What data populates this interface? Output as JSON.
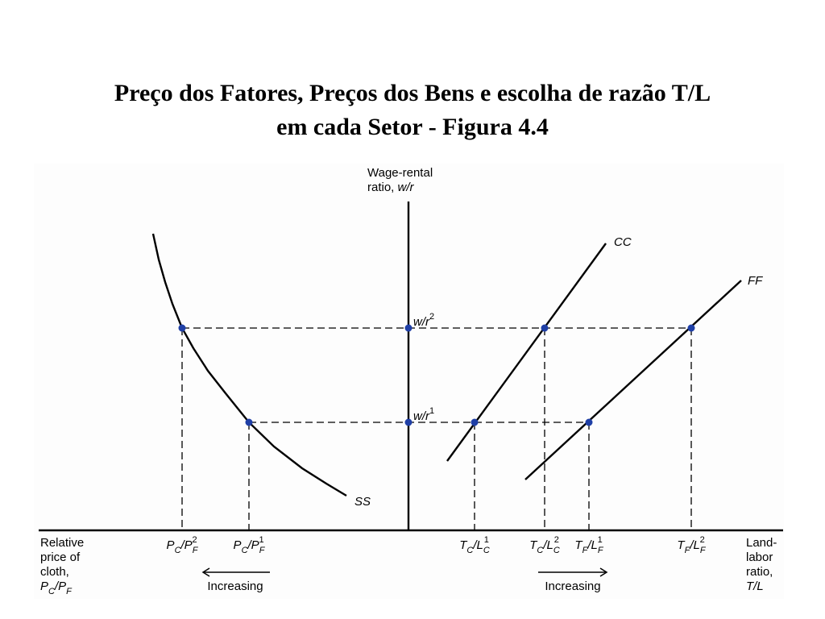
{
  "title": [
    "Preço dos Fatores, Preços dos Bens e escolha de razão T/L",
    "em cada Setor - Figura 4.4"
  ],
  "axis_labels": {
    "vertical": [
      [
        {
          "s": "n",
          "text": "Wage-rental"
        }
      ],
      [
        {
          "s": "n",
          "text": "ratio, "
        },
        {
          "s": "i",
          "text": "w/r"
        }
      ]
    ],
    "left": [
      [
        {
          "s": "n",
          "text": "Relative"
        }
      ],
      [
        {
          "s": "n",
          "text": "price of"
        }
      ],
      [
        {
          "s": "n",
          "text": "cloth,"
        }
      ],
      [
        {
          "s": "i",
          "text": "P"
        },
        {
          "s": "sub",
          "text": "C"
        },
        {
          "s": "i",
          "text": "/P"
        },
        {
          "s": "sub",
          "text": "F"
        }
      ]
    ],
    "right": [
      [
        {
          "s": "n",
          "text": "Land-"
        }
      ],
      [
        {
          "s": "n",
          "text": "labor"
        }
      ],
      [
        {
          "s": "n",
          "text": "ratio,"
        }
      ],
      [
        {
          "s": "i",
          "text": "T/L"
        }
      ]
    ]
  },
  "curves": {
    "cc": "CC",
    "ff": "FF",
    "ss": "SS"
  },
  "wage_levels": [
    [
      {
        "s": "i",
        "text": "w/r"
      },
      {
        "s": "sup",
        "text": "2"
      }
    ],
    [
      {
        "s": "i",
        "text": "w/r"
      },
      {
        "s": "sup",
        "text": "1"
      }
    ]
  ],
  "ticks": [
    [
      {
        "s": "i",
        "text": "P"
      },
      {
        "s": "sub",
        "text": "C"
      },
      {
        "s": "i",
        "text": "/P"
      },
      {
        "s": "subsup",
        "text": "F",
        "sup": "2"
      }
    ],
    [
      {
        "s": "i",
        "text": "P"
      },
      {
        "s": "sub",
        "text": "C"
      },
      {
        "s": "i",
        "text": "/P"
      },
      {
        "s": "subsup",
        "text": "F",
        "sup": "1"
      }
    ],
    [
      {
        "s": "i",
        "text": "T"
      },
      {
        "s": "sub",
        "text": "C"
      },
      {
        "s": "i",
        "text": "/L"
      },
      {
        "s": "subsup",
        "text": "C",
        "sup": "1"
      }
    ],
    [
      {
        "s": "i",
        "text": "T"
      },
      {
        "s": "sub",
        "text": "C"
      },
      {
        "s": "i",
        "text": "/L"
      },
      {
        "s": "subsup",
        "text": "C",
        "sup": "2"
      }
    ],
    [
      {
        "s": "i",
        "text": "T"
      },
      {
        "s": "sub",
        "text": "F"
      },
      {
        "s": "i",
        "text": "/L"
      },
      {
        "s": "subsup",
        "text": "F",
        "sup": "1"
      }
    ],
    [
      {
        "s": "i",
        "text": "T"
      },
      {
        "s": "sub",
        "text": "F"
      },
      {
        "s": "i",
        "text": "/L"
      },
      {
        "s": "subsup",
        "text": "F",
        "sup": "2"
      }
    ]
  ],
  "increasing": [
    "Increasing",
    "Increasing"
  ]
}
